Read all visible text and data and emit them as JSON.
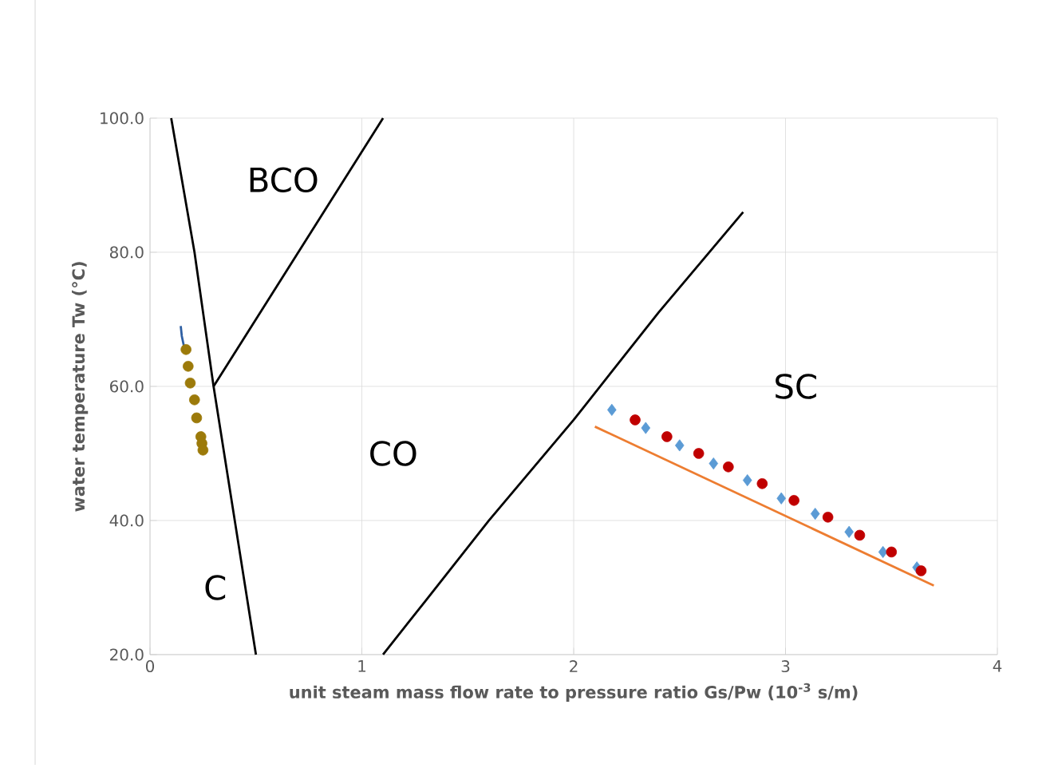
{
  "chart_data": {
    "type": "scatter",
    "xlabel": "unit steam mass flow rate to pressure ratio Gs/Pw (10$^{-3}$ s/m)",
    "ylabel": "water temperature Tw (°C)",
    "xlim": [
      0,
      4
    ],
    "ylim": [
      20,
      100
    ],
    "xticks": [
      0,
      1,
      2,
      3,
      4
    ],
    "yticks": [
      {
        "value": 20,
        "label": "20.0"
      },
      {
        "value": 40,
        "label": "40.0"
      },
      {
        "value": 60,
        "label": "60.0"
      },
      {
        "value": 80,
        "label": "80.0"
      },
      {
        "value": 100,
        "label": "100.0"
      }
    ],
    "grid": true,
    "series": [
      {
        "type": "line",
        "color": "#000000",
        "line_style": "solid",
        "x": [
          0.1,
          0.21,
          0.3,
          0.5
        ],
        "values": [
          100,
          80,
          60,
          20
        ]
      },
      {
        "type": "line",
        "color": "#000000",
        "line_style": "solid",
        "x": [
          0.3,
          0.5,
          0.8,
          1.1
        ],
        "values": [
          60,
          70,
          85,
          100
        ]
      },
      {
        "type": "line",
        "color": "#000000",
        "line_style": "solid",
        "x": [
          1.1,
          1.3,
          1.6,
          2.0,
          2.4,
          2.8
        ],
        "values": [
          20,
          28,
          40,
          55,
          71,
          86
        ]
      },
      {
        "type": "line",
        "color": "#ed7d31",
        "line_style": "solid",
        "x": [
          2.1,
          3.7
        ],
        "values": [
          54,
          30.3
        ]
      },
      {
        "type": "line",
        "color": "#2e5fa3",
        "line_style": "solid",
        "x": [
          0.145,
          0.15,
          0.16
        ],
        "values": [
          69,
          67.5,
          66
        ]
      },
      {
        "marker": "diamond",
        "color": "#5b9bd5",
        "x": [
          2.18,
          2.34,
          2.5,
          2.66,
          2.82,
          2.98,
          3.14,
          3.3,
          3.46,
          3.62
        ],
        "values": [
          56.5,
          53.8,
          51.2,
          48.5,
          46,
          43.3,
          41,
          38.3,
          35.3,
          33
        ]
      },
      {
        "marker": "circle",
        "color": "#c00000",
        "x": [
          2.29,
          2.44,
          2.59,
          2.73,
          2.89,
          3.04,
          3.2,
          3.35,
          3.5,
          3.64
        ],
        "values": [
          55,
          52.5,
          50,
          48,
          45.5,
          43,
          40.5,
          37.8,
          35.3,
          32.5
        ]
      },
      {
        "marker": "circle",
        "color": "#9c7a0a",
        "x": [
          0.17,
          0.18,
          0.19,
          0.21,
          0.22,
          0.24,
          0.245,
          0.25
        ],
        "values": [
          65.5,
          63,
          60.5,
          58,
          55.3,
          52.5,
          51.5,
          50.5
        ]
      }
    ],
    "annotations": [
      "BCO",
      "CO",
      "C",
      "SC"
    ]
  }
}
